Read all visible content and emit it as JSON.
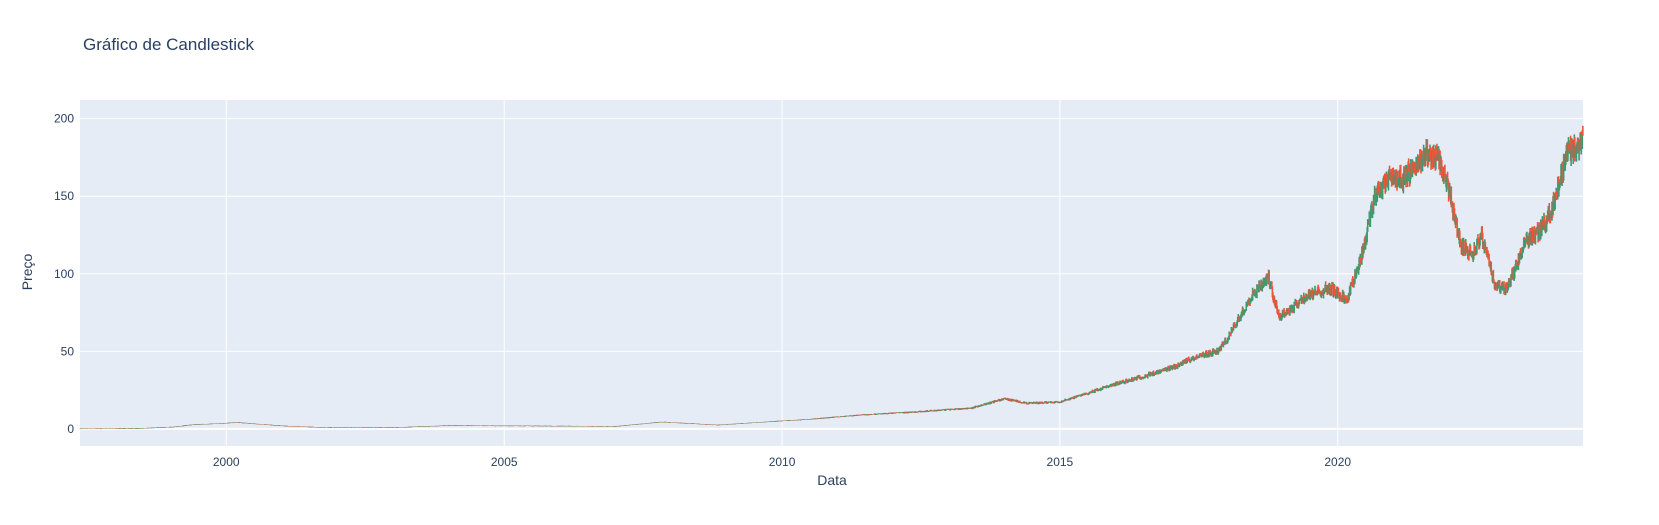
{
  "chart_data": {
    "type": "candlestick",
    "title": "Gráfico de Candlestick",
    "xlabel": "Data",
    "ylabel": "Preço",
    "x_range": [
      "1997-05-15",
      "2024-05-31"
    ],
    "ylim": [
      -11,
      212
    ],
    "y_ticks": [
      0,
      50,
      100,
      150,
      200
    ],
    "x_ticks": [
      "2000",
      "2005",
      "2010",
      "2015",
      "2020"
    ],
    "grid": true,
    "legend": "none",
    "colors": {
      "plot_bg": "#e5ecf6",
      "grid": "#ffffff",
      "increasing": "#3d9970",
      "decreasing": "#ef553b",
      "text": "#2a3f5f"
    },
    "price_anchors": [
      [
        "1997-05-15",
        0.1
      ],
      [
        "1998-06-01",
        0.3
      ],
      [
        "1999-01-15",
        1.2
      ],
      [
        "1999-06-01",
        2.8
      ],
      [
        "1999-12-01",
        3.5
      ],
      [
        "2000-03-01",
        4.2
      ],
      [
        "2001-01-01",
        2.0
      ],
      [
        "2001-09-01",
        1.0
      ],
      [
        "2002-06-01",
        0.8
      ],
      [
        "2003-03-01",
        1.0
      ],
      [
        "2004-01-01",
        2.2
      ],
      [
        "2005-01-01",
        2.0
      ],
      [
        "2006-01-01",
        1.8
      ],
      [
        "2007-01-01",
        1.6
      ],
      [
        "2007-11-01",
        4.5
      ],
      [
        "2008-11-01",
        2.5
      ],
      [
        "2009-12-01",
        5.0
      ],
      [
        "2010-06-01",
        6.0
      ],
      [
        "2011-06-01",
        9.0
      ],
      [
        "2012-06-01",
        11.0
      ],
      [
        "2013-01-01",
        12.5
      ],
      [
        "2013-06-01",
        13.5
      ],
      [
        "2014-01-01",
        19.5
      ],
      [
        "2014-06-01",
        16.5
      ],
      [
        "2015-01-01",
        17.5
      ],
      [
        "2015-06-01",
        22.0
      ],
      [
        "2016-01-01",
        29.0
      ],
      [
        "2016-06-01",
        33.0
      ],
      [
        "2017-01-01",
        39.0
      ],
      [
        "2017-06-01",
        46.0
      ],
      [
        "2017-11-01",
        50.0
      ],
      [
        "2018-01-01",
        57.0
      ],
      [
        "2018-06-01",
        84.0
      ],
      [
        "2018-10-01",
        98.0
      ],
      [
        "2018-12-15",
        72.0
      ],
      [
        "2019-06-01",
        85.0
      ],
      [
        "2019-11-01",
        91.0
      ],
      [
        "2020-03-01",
        83.0
      ],
      [
        "2020-06-01",
        110.0
      ],
      [
        "2020-09-01",
        150.0
      ],
      [
        "2020-12-01",
        163.0
      ],
      [
        "2021-03-01",
        160.0
      ],
      [
        "2021-08-01",
        178.0
      ],
      [
        "2021-11-01",
        172.0
      ],
      [
        "2022-01-15",
        148.0
      ],
      [
        "2022-03-15",
        120.0
      ],
      [
        "2022-06-01",
        112.0
      ],
      [
        "2022-08-01",
        125.0
      ],
      [
        "2022-11-01",
        92.0
      ],
      [
        "2023-01-15",
        90.0
      ],
      [
        "2023-06-01",
        123.0
      ],
      [
        "2023-09-01",
        128.0
      ],
      [
        "2023-12-01",
        148.0
      ],
      [
        "2024-02-15",
        178.0
      ],
      [
        "2024-05-31",
        186.0
      ]
    ]
  }
}
